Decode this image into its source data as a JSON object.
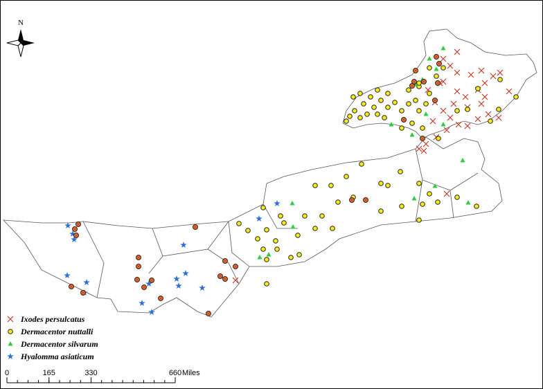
{
  "compass": {
    "label": "N"
  },
  "legend": {
    "items": [
      {
        "label": "Ixodes persulcatus"
      },
      {
        "label": "Dermacentor nuttalli"
      },
      {
        "label": "Dermacentor silvarum"
      },
      {
        "label": "Hyalomma asiaticum"
      }
    ]
  },
  "scale_bar": {
    "ticks": [
      0,
      165,
      330,
      660
    ],
    "unit": "Miles"
  }
}
